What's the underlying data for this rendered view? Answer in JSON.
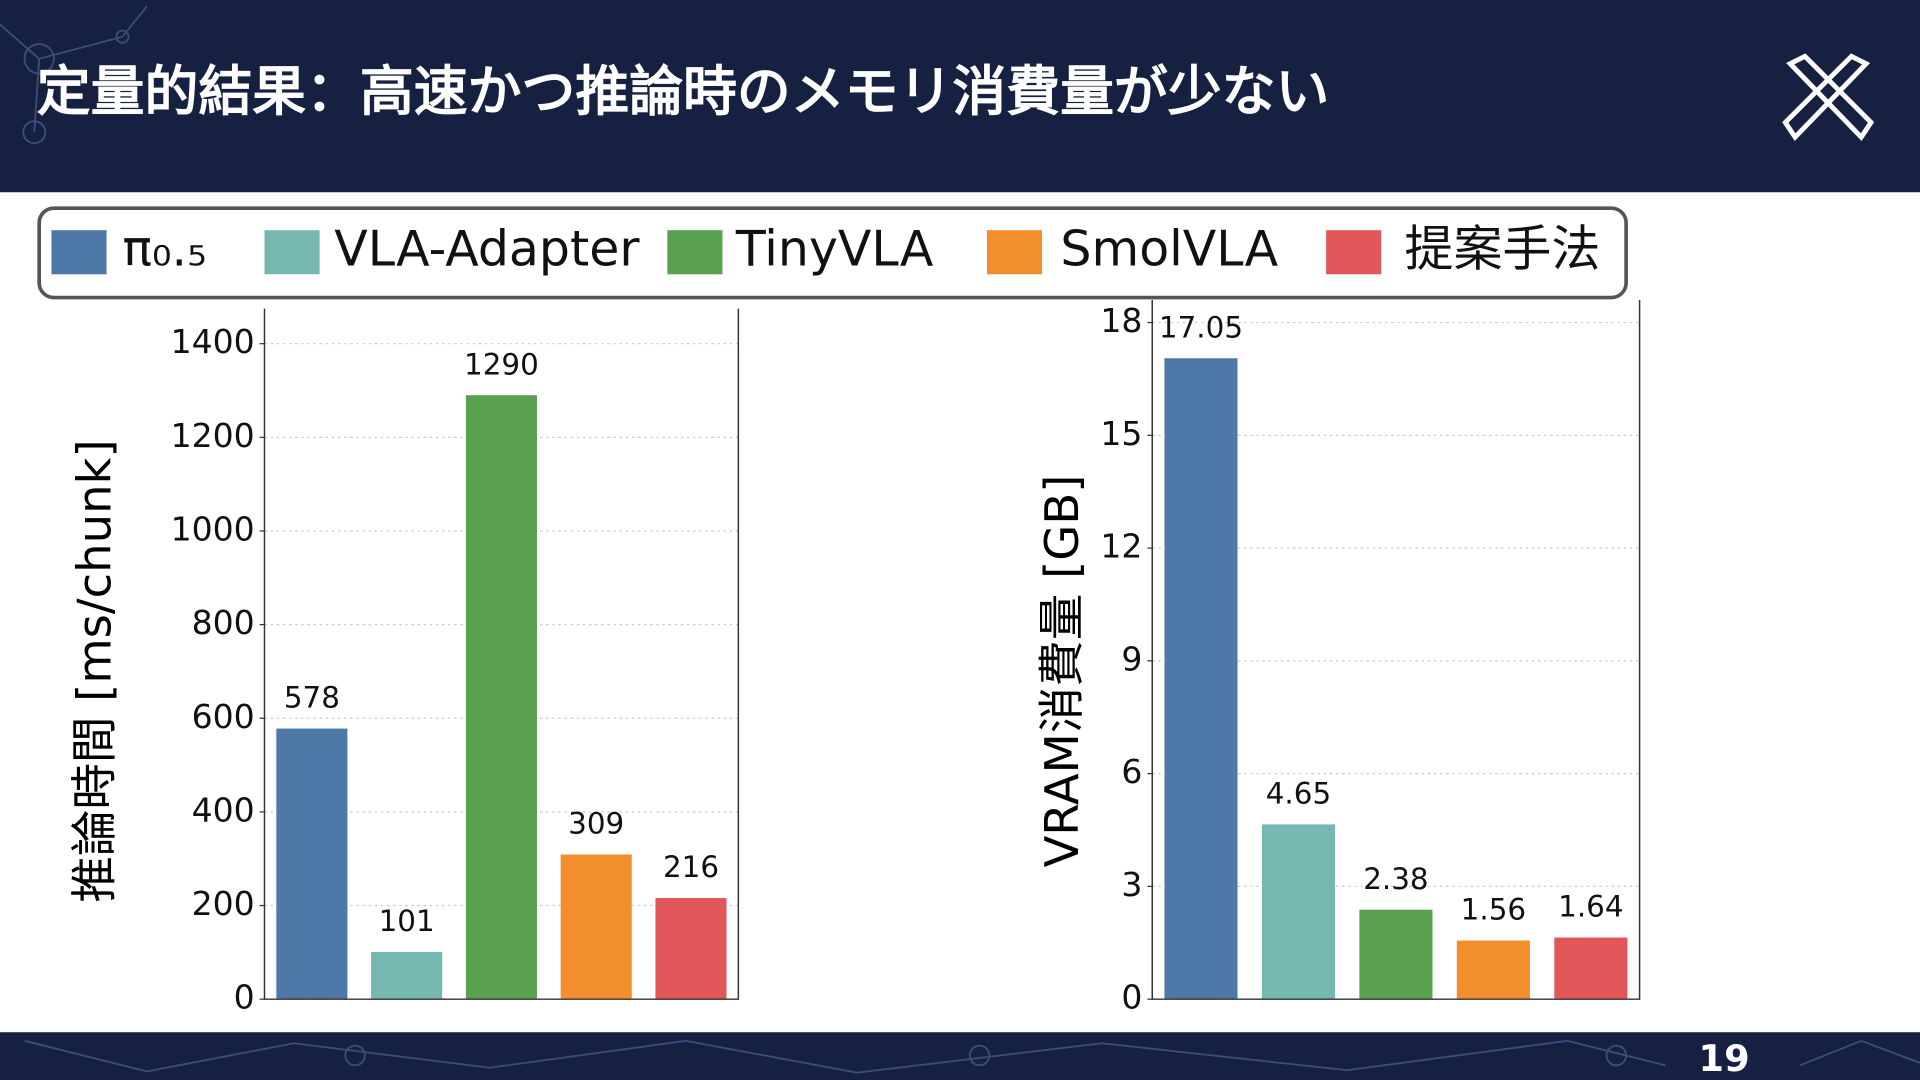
{
  "slide": {
    "title": "定量的結果：高速かつ推論時のメモリ消費量が少ない",
    "page_number": 19
  },
  "chart_data": [
    {
      "type": "bar",
      "y_label": "推論時間 [ms/chunk]",
      "series": [
        {
          "name": "π₀.₅",
          "color": "#4e79a7",
          "values": [
            578
          ]
        },
        {
          "name": "VLA-Adapter",
          "color": "#76b7b2",
          "values": [
            101
          ]
        },
        {
          "name": "TinyVLA",
          "color": "#59a14f",
          "values": [
            1290
          ]
        },
        {
          "name": "SmolVLA",
          "color": "#f28e2b",
          "values": [
            309
          ]
        },
        {
          "name": "提案手法",
          "color": "#e15759",
          "values": [
            216
          ]
        }
      ],
      "ylim": [
        0,
        1475
      ],
      "yticks": [
        0,
        200,
        400,
        600,
        800,
        1000,
        1200,
        1400
      ],
      "grid": true
    },
    {
      "type": "bar",
      "y_label": "VRAM消費量 [GB]",
      "series": [
        {
          "color": "#4e79a7",
          "values": [
            17.05
          ]
        },
        {
          "color": "#76b7b2",
          "values": [
            4.65
          ]
        },
        {
          "color": "#59a14f",
          "values": [
            2.38
          ]
        },
        {
          "color": "#f28e2b",
          "values": [
            1.56
          ]
        },
        {
          "color": "#e15759",
          "values": [
            1.64
          ]
        }
      ],
      "ylim": [
        0,
        18.6
      ],
      "yticks": [
        0,
        3,
        6,
        9,
        12,
        15,
        18
      ],
      "grid": true
    }
  ]
}
